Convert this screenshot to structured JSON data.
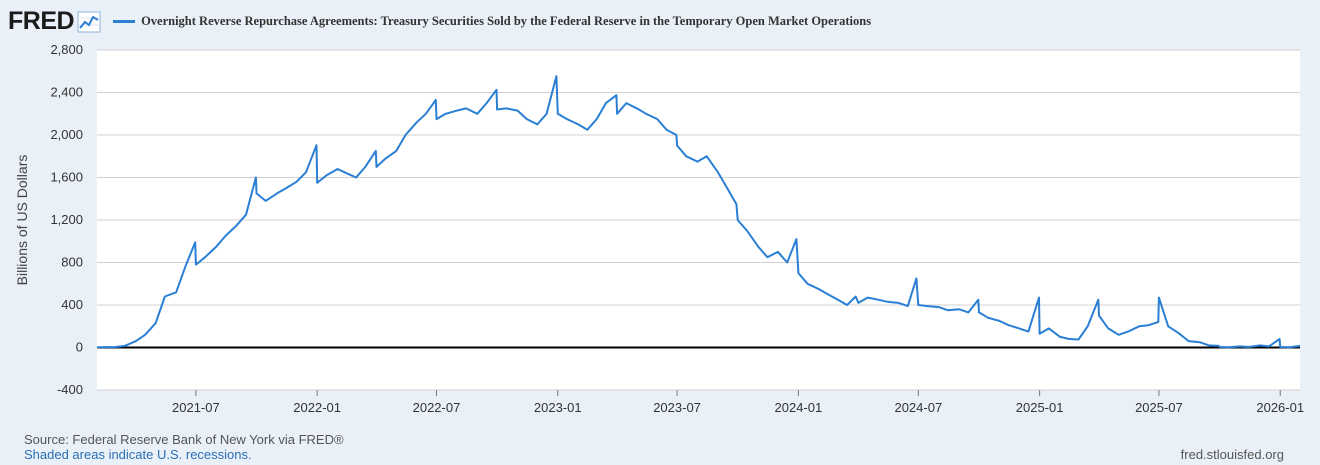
{
  "header": {
    "logo_text": "FRED",
    "logo_icon": "line-graph-icon",
    "series_color": "#2a7fd4"
  },
  "chart_data": {
    "type": "line",
    "title": "Overnight Reverse Repurchase Agreements: Treasury Securities Sold by the Federal Reserve in the Temporary Open Market Operations",
    "xlabel": "",
    "ylabel": "Billions of US Dollars",
    "ylim": [
      -400,
      2800
    ],
    "yticks": [
      -400,
      0,
      400,
      800,
      1200,
      1600,
      2000,
      2400,
      2800
    ],
    "ytick_labels": [
      "-400",
      "0",
      "400",
      "800",
      "1,200",
      "1,600",
      "2,000",
      "2,400",
      "2,800"
    ],
    "xlim": [
      "2021-02-01",
      "2026-01-31"
    ],
    "xticks": [
      "2021-07",
      "2022-01",
      "2022-07",
      "2023-01",
      "2023-07",
      "2024-01",
      "2024-07",
      "2025-01",
      "2025-07",
      "2026-01"
    ],
    "grid": true,
    "legend": "top-left",
    "series": [
      {
        "name": "Overnight Reverse Repurchase Agreements: Treasury Securities Sold by the Federal Reserve in the Temporary Open Market Operations",
        "color": "#2a7fd4",
        "x": [
          "2021-02-01",
          "2021-03-01",
          "2021-03-15",
          "2021-04-01",
          "2021-04-15",
          "2021-05-01",
          "2021-05-15",
          "2021-06-01",
          "2021-06-15",
          "2021-06-30",
          "2021-07-01",
          "2021-07-15",
          "2021-08-01",
          "2021-08-15",
          "2021-09-01",
          "2021-09-15",
          "2021-09-30",
          "2021-10-01",
          "2021-10-15",
          "2021-11-01",
          "2021-11-15",
          "2021-12-01",
          "2021-12-15",
          "2021-12-31",
          "2022-01-01",
          "2022-01-15",
          "2022-02-01",
          "2022-02-15",
          "2022-03-01",
          "2022-03-15",
          "2022-03-31",
          "2022-04-01",
          "2022-04-15",
          "2022-05-01",
          "2022-05-15",
          "2022-06-01",
          "2022-06-15",
          "2022-06-30",
          "2022-07-01",
          "2022-07-15",
          "2022-08-01",
          "2022-08-15",
          "2022-09-01",
          "2022-09-15",
          "2022-09-30",
          "2022-10-01",
          "2022-10-15",
          "2022-11-01",
          "2022-11-15",
          "2022-12-01",
          "2022-12-15",
          "2022-12-30",
          "2023-01-01",
          "2023-01-15",
          "2023-02-01",
          "2023-02-15",
          "2023-03-01",
          "2023-03-15",
          "2023-03-31",
          "2023-04-01",
          "2023-04-15",
          "2023-05-01",
          "2023-05-15",
          "2023-06-01",
          "2023-06-15",
          "2023-06-30",
          "2023-07-01",
          "2023-07-15",
          "2023-08-01",
          "2023-08-15",
          "2023-09-01",
          "2023-09-15",
          "2023-09-29",
          "2023-10-01",
          "2023-10-15",
          "2023-11-01",
          "2023-11-15",
          "2023-12-01",
          "2023-12-15",
          "2023-12-29",
          "2024-01-01",
          "2024-01-15",
          "2024-02-01",
          "2024-02-15",
          "2024-03-01",
          "2024-03-15",
          "2024-03-28",
          "2024-04-01",
          "2024-04-15",
          "2024-05-01",
          "2024-05-15",
          "2024-06-01",
          "2024-06-15",
          "2024-06-28",
          "2024-07-01",
          "2024-07-15",
          "2024-08-01",
          "2024-08-15",
          "2024-09-01",
          "2024-09-15",
          "2024-09-30",
          "2024-10-01",
          "2024-10-15",
          "2024-11-01",
          "2024-11-15",
          "2024-12-01",
          "2024-12-15",
          "2024-12-31",
          "2025-01-01",
          "2025-01-15",
          "2025-02-01",
          "2025-02-15",
          "2025-03-01",
          "2025-03-15",
          "2025-03-31",
          "2025-04-01",
          "2025-04-15",
          "2025-05-01",
          "2025-05-15",
          "2025-06-01",
          "2025-06-15",
          "2025-06-30",
          "2025-07-01",
          "2025-07-15",
          "2025-08-01",
          "2025-08-15",
          "2025-09-01",
          "2025-09-15",
          "2025-09-30",
          "2025-10-01",
          "2025-10-15",
          "2025-11-01",
          "2025-11-15",
          "2025-12-01",
          "2025-12-15",
          "2025-12-31",
          "2026-01-01",
          "2026-01-15",
          "2026-01-31"
        ],
        "values": [
          2,
          5,
          15,
          60,
          120,
          230,
          480,
          520,
          760,
          990,
          780,
          850,
          950,
          1050,
          1150,
          1250,
          1600,
          1450,
          1380,
          1450,
          1500,
          1560,
          1650,
          1904,
          1550,
          1620,
          1680,
          1640,
          1600,
          1700,
          1850,
          1700,
          1780,
          1850,
          2000,
          2120,
          2200,
          2330,
          2150,
          2200,
          2230,
          2250,
          2200,
          2300,
          2425,
          2240,
          2250,
          2230,
          2150,
          2100,
          2200,
          2554,
          2200,
          2150,
          2100,
          2050,
          2150,
          2300,
          2375,
          2200,
          2300,
          2250,
          2200,
          2150,
          2050,
          2000,
          1900,
          1800,
          1750,
          1800,
          1650,
          1500,
          1350,
          1200,
          1100,
          950,
          850,
          900,
          800,
          1020,
          700,
          600,
          550,
          500,
          450,
          400,
          480,
          420,
          470,
          450,
          430,
          420,
          390,
          650,
          400,
          390,
          380,
          350,
          360,
          330,
          450,
          330,
          280,
          250,
          210,
          180,
          150,
          470,
          130,
          180,
          100,
          80,
          75,
          200,
          450,
          300,
          180,
          120,
          150,
          200,
          210,
          240,
          470,
          200,
          130,
          60,
          50,
          20,
          15,
          5,
          3,
          10,
          5,
          20,
          10,
          80,
          5,
          2,
          15
        ]
      }
    ]
  },
  "footer": {
    "source": "Source: Federal Reserve Bank of New York via FRED®",
    "recession_note": "Shaded areas indicate U.S. recessions.",
    "site": "fred.stlouisfed.org"
  }
}
